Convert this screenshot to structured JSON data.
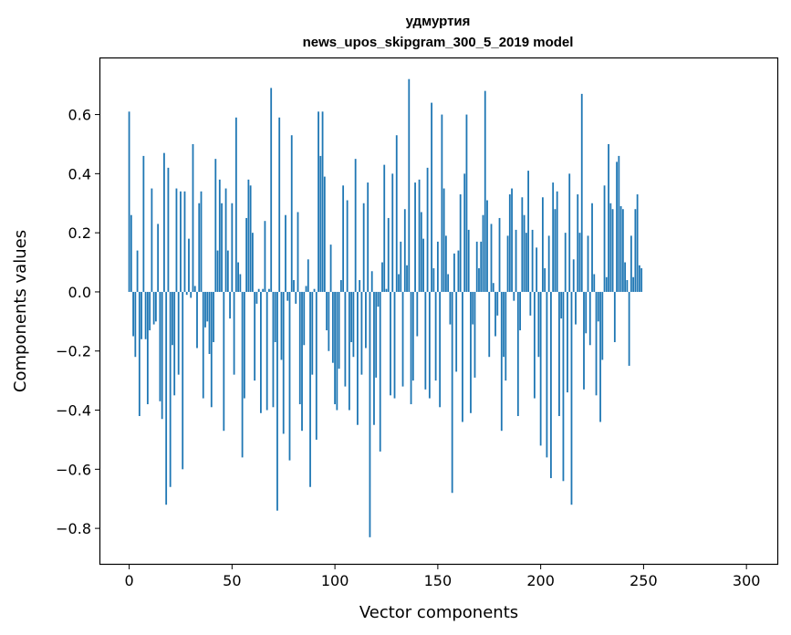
{
  "chart_data": {
    "type": "bar",
    "title": "удмуртия",
    "subtitle": "news_upos_skipgram_300_5_2019 model",
    "xlabel": "Vector components",
    "ylabel": "Components values",
    "xlim": [
      -14,
      315
    ],
    "ylim": [
      -0.92,
      0.79
    ],
    "x_ticks": [
      0,
      50,
      100,
      150,
      200,
      250,
      300
    ],
    "x_tick_labels": [
      "0",
      "50",
      "100",
      "150",
      "200",
      "250",
      "300"
    ],
    "y_ticks": [
      -0.8,
      -0.6,
      -0.4,
      -0.2,
      0.0,
      0.2,
      0.4,
      0.6
    ],
    "y_tick_labels": [
      "−0.8",
      "−0.6",
      "−0.4",
      "−0.2",
      "0.0",
      "0.2",
      "0.4",
      "0.6"
    ],
    "bar_color": "#1f77b4",
    "series": [
      {
        "name": "components",
        "values": [
          0.61,
          0.26,
          -0.15,
          -0.22,
          0.14,
          -0.42,
          -0.16,
          0.46,
          -0.16,
          -0.38,
          -0.13,
          0.35,
          -0.11,
          -0.1,
          0.23,
          -0.37,
          -0.43,
          0.47,
          -0.72,
          0.42,
          -0.66,
          -0.18,
          -0.35,
          0.35,
          -0.28,
          0.34,
          -0.6,
          0.34,
          -0.01,
          0.18,
          -0.02,
          0.5,
          0.02,
          -0.19,
          0.3,
          0.34,
          -0.36,
          -0.12,
          -0.1,
          -0.21,
          -0.39,
          -0.17,
          0.45,
          0.14,
          0.38,
          0.3,
          -0.47,
          0.35,
          0.14,
          -0.09,
          0.3,
          -0.28,
          0.59,
          0.1,
          0.06,
          -0.56,
          -0.36,
          0.25,
          0.38,
          0.36,
          0.2,
          -0.3,
          -0.04,
          0.01,
          -0.41,
          0.01,
          0.24,
          -0.4,
          0.01,
          0.69,
          -0.39,
          -0.17,
          -0.74,
          0.59,
          -0.23,
          -0.48,
          0.26,
          -0.03,
          -0.57,
          0.53,
          0.04,
          -0.04,
          0.27,
          -0.38,
          -0.47,
          -0.18,
          0.02,
          0.11,
          -0.66,
          -0.28,
          0.01,
          -0.5,
          0.61,
          0.46,
          0.61,
          0.39,
          -0.13,
          -0.2,
          0.16,
          -0.24,
          -0.38,
          -0.4,
          -0.26,
          0.04,
          0.36,
          -0.32,
          0.31,
          -0.4,
          -0.17,
          -0.22,
          0.45,
          -0.45,
          0.04,
          -0.28,
          0.3,
          -0.19,
          0.37,
          -0.83,
          0.07,
          -0.45,
          -0.29,
          -0.05,
          -0.54,
          0.1,
          0.43,
          0.01,
          0.25,
          -0.35,
          0.4,
          -0.36,
          0.53,
          0.06,
          0.17,
          -0.32,
          0.28,
          0.09,
          0.72,
          -0.38,
          -0.3,
          0.37,
          -0.15,
          0.38,
          0.27,
          0.18,
          -0.33,
          0.42,
          -0.36,
          0.64,
          0.08,
          -0.3,
          0.17,
          -0.39,
          0.6,
          0.35,
          0.19,
          0.06,
          -0.11,
          -0.68,
          0.13,
          -0.27,
          0.14,
          0.33,
          -0.44,
          0.4,
          0.6,
          0.21,
          -0.41,
          -0.11,
          -0.29,
          0.17,
          0.08,
          0.17,
          0.26,
          0.68,
          0.31,
          -0.22,
          0.23,
          0.03,
          -0.15,
          -0.08,
          0.25,
          -0.47,
          -0.22,
          -0.3,
          0.19,
          0.33,
          0.35,
          -0.03,
          0.21,
          -0.42,
          -0.13,
          0.32,
          0.26,
          0.2,
          0.41,
          -0.08,
          0.21,
          -0.36,
          0.15,
          -0.22,
          -0.52,
          0.32,
          0.08,
          -0.56,
          0.19,
          -0.63,
          0.37,
          0.28,
          0.34,
          -0.42,
          -0.09,
          -0.64,
          0.2,
          -0.34,
          0.4,
          -0.72,
          0.11,
          -0.11,
          0.33,
          0.2,
          0.67,
          -0.33,
          -0.14,
          0.19,
          -0.18,
          0.3,
          0.06,
          -0.35,
          -0.1,
          -0.44,
          -0.23,
          0.36,
          0.05,
          0.5,
          0.3,
          0.28,
          -0.17,
          0.44,
          0.46,
          0.29,
          0.28,
          0.1,
          0.04,
          -0.25,
          0.19,
          0.05,
          0.28,
          0.33,
          0.09,
          0.08
        ]
      }
    ]
  }
}
